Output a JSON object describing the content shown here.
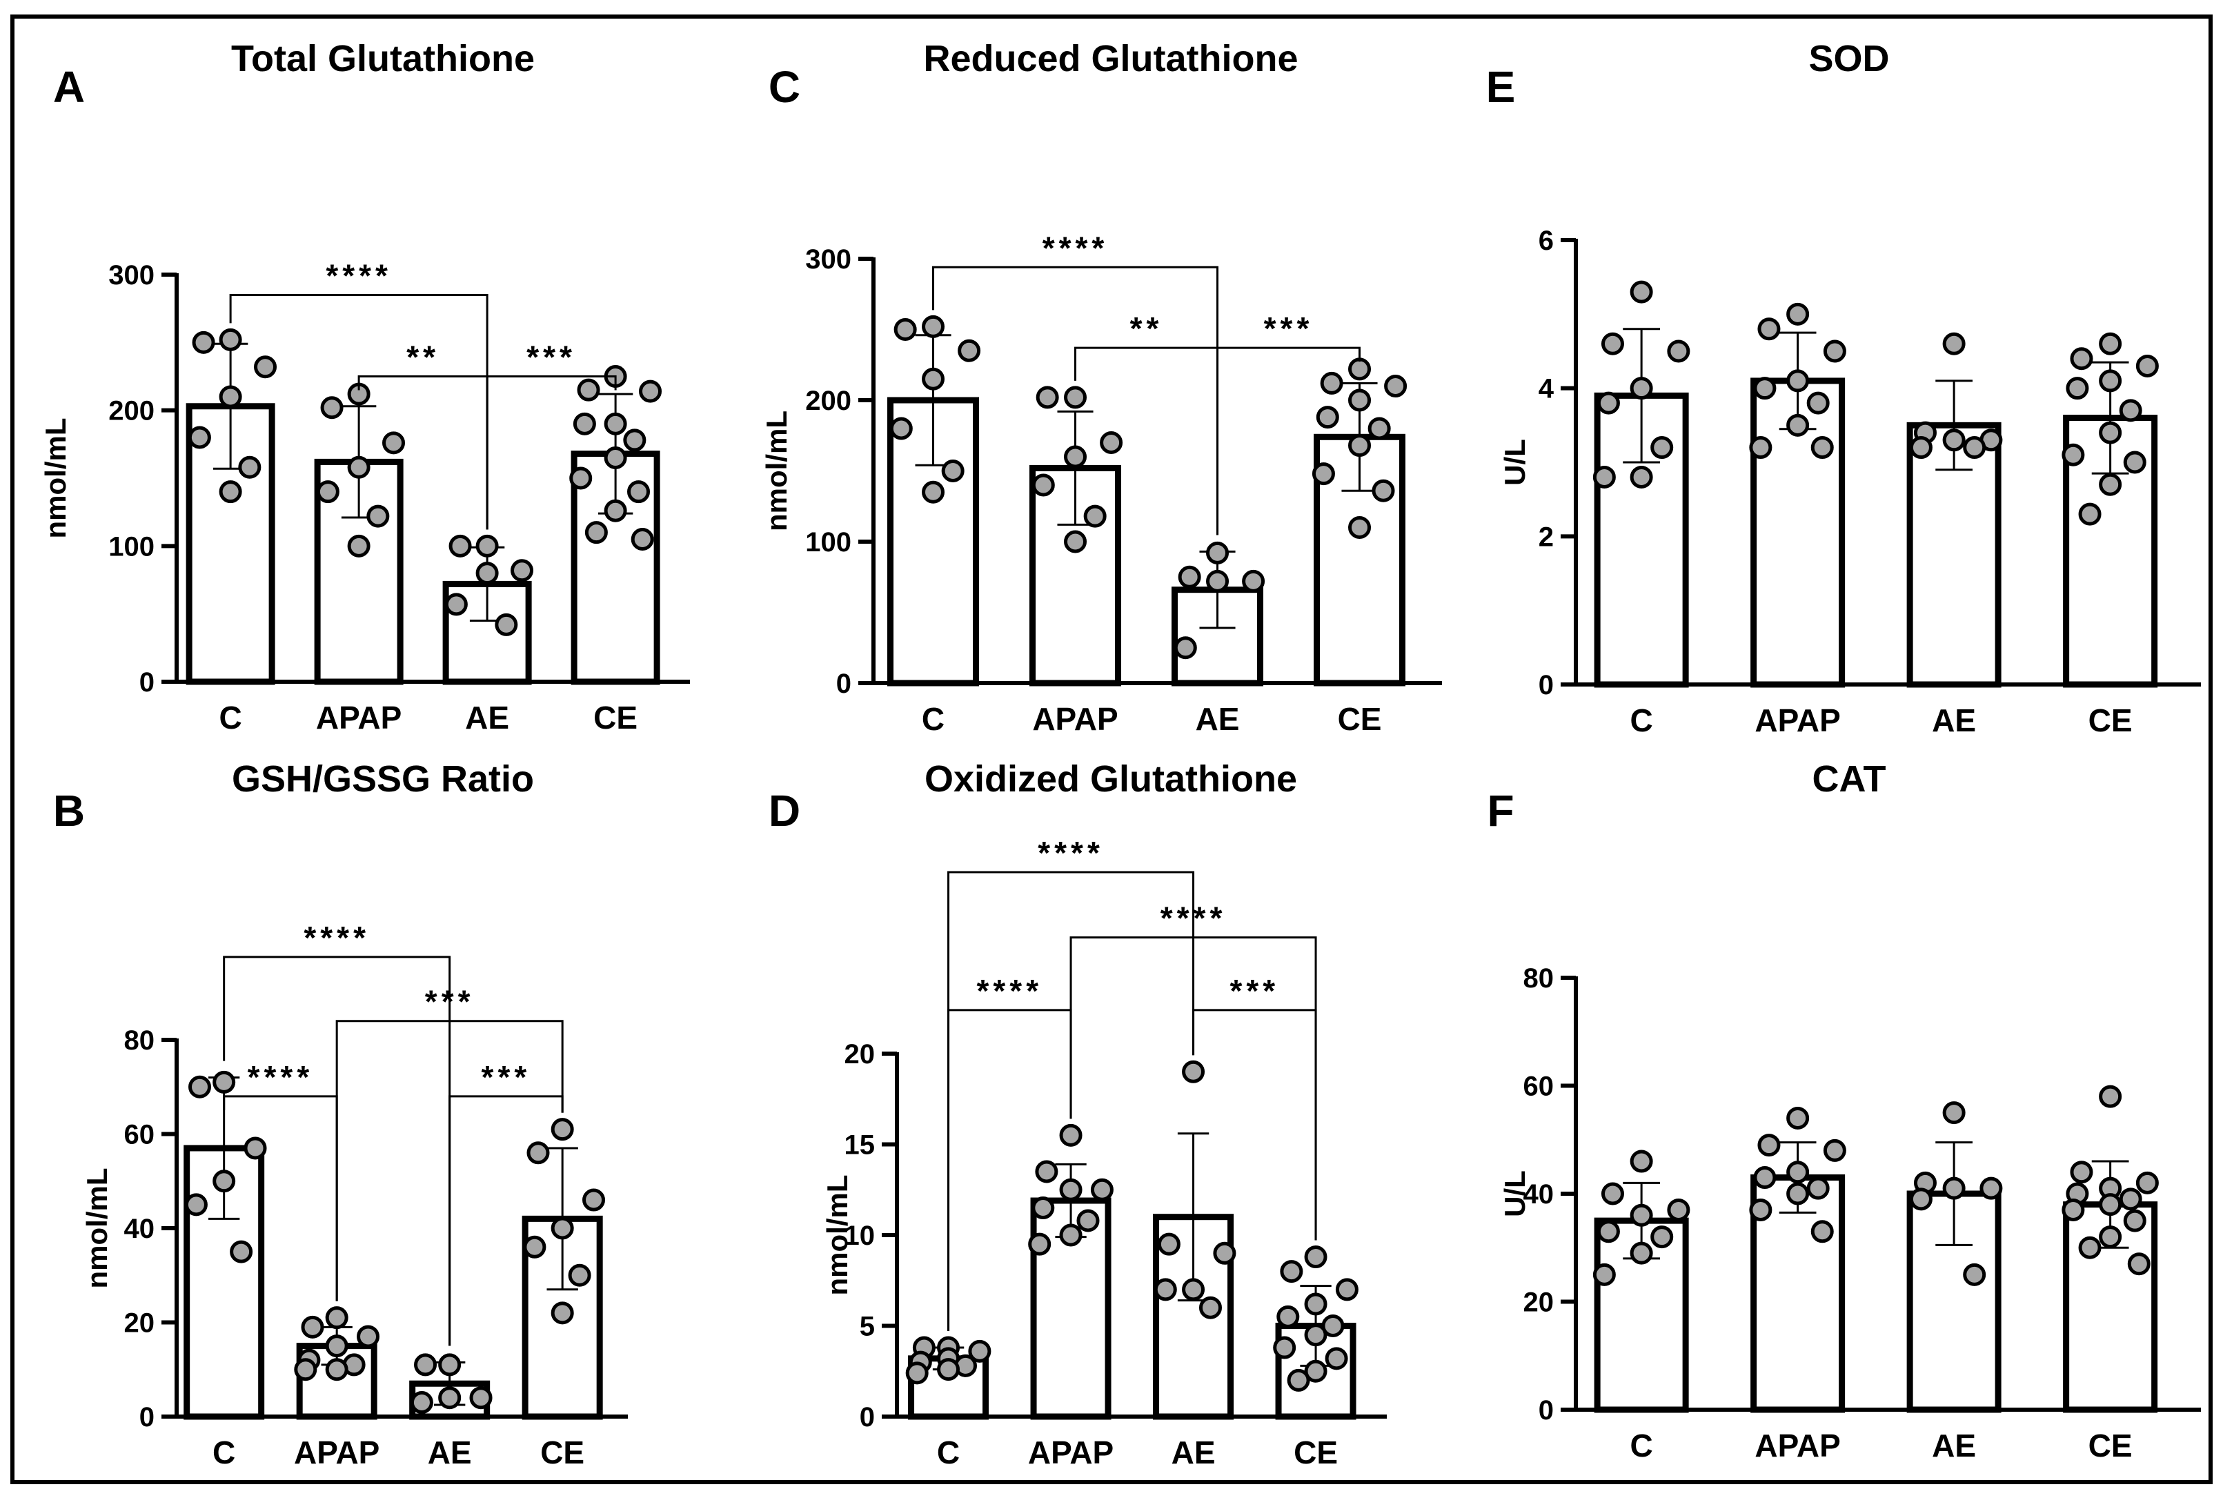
{
  "colors": {
    "frame": "#000000",
    "bar_fill": "#ffffff",
    "point_fill": "#a6a6a6",
    "ink": "#000000"
  },
  "chart_data": [
    {
      "panel": "A",
      "type": "bar",
      "title": "Total Glutathione",
      "ylabel": "nmol/mL",
      "ylim": [
        0,
        300
      ],
      "yticks": [
        0,
        100,
        200,
        300
      ],
      "ytick_labels": [
        "0",
        "100",
        "200",
        "300"
      ],
      "categories": [
        "C",
        "APAP",
        "AE",
        "CE"
      ],
      "values": [
        203,
        162,
        72,
        168
      ],
      "sd": [
        46,
        41,
        27,
        44
      ],
      "points": [
        [
          252,
          250,
          232,
          210,
          180,
          158,
          140
        ],
        [
          212,
          202,
          176,
          158,
          140,
          122,
          100
        ],
        [
          100,
          100,
          82,
          80,
          57,
          42
        ],
        [
          225,
          215,
          214,
          190,
          190,
          178,
          165,
          150,
          140,
          126,
          110,
          105
        ]
      ],
      "significance": [
        {
          "from": 0,
          "to": 2,
          "label": "****",
          "level": 0.95
        },
        {
          "from": 1,
          "to": 2,
          "label": "**",
          "level": 0.75
        },
        {
          "from": 2,
          "to": 3,
          "label": "***",
          "level": 0.75
        }
      ]
    },
    {
      "panel": "B",
      "type": "bar",
      "title": "GSH/GSSG Ratio",
      "ylabel": "nmol/mL",
      "ylim": [
        0,
        80
      ],
      "yticks": [
        0,
        20,
        40,
        60,
        80
      ],
      "ytick_labels": [
        "0",
        "20",
        "40",
        "60",
        "80"
      ],
      "categories": [
        "C",
        "APAP",
        "AE",
        "CE"
      ],
      "values": [
        57,
        15,
        7,
        42
      ],
      "sd": [
        15,
        4,
        4.5,
        15
      ],
      "points": [
        [
          71,
          70,
          57,
          50,
          45,
          35
        ],
        [
          21,
          19,
          17,
          15,
          12,
          11,
          10,
          10
        ],
        [
          11,
          11,
          4,
          4,
          3
        ],
        [
          61,
          56,
          46,
          40,
          36,
          30,
          22
        ]
      ],
      "significance": [
        {
          "from": 0,
          "to": 2,
          "label": "****",
          "level": 1.22
        },
        {
          "from": 1,
          "to": 3,
          "label": "***",
          "level": 1.05
        },
        {
          "from": 0,
          "to": 1,
          "label": "****",
          "level": 0.85
        },
        {
          "from": 2,
          "to": 3,
          "label": "***",
          "level": 0.85
        }
      ]
    },
    {
      "panel": "C",
      "type": "bar",
      "title": "Reduced Glutathione",
      "ylabel": "nmol/mL",
      "ylim": [
        0,
        300
      ],
      "yticks": [
        0,
        100,
        200,
        300
      ],
      "ytick_labels": [
        "0",
        "100",
        "200",
        "300"
      ],
      "categories": [
        "C",
        "APAP",
        "AE",
        "CE"
      ],
      "values": [
        200,
        152,
        66,
        174
      ],
      "sd": [
        46,
        40,
        27,
        38
      ],
      "points": [
        [
          252,
          250,
          235,
          215,
          180,
          150,
          135
        ],
        [
          202,
          202,
          170,
          160,
          140,
          118,
          100
        ],
        [
          92,
          75,
          72,
          72,
          25
        ],
        [
          222,
          212,
          210,
          200,
          188,
          180,
          168,
          148,
          136,
          110
        ]
      ],
      "significance": [
        {
          "from": 0,
          "to": 2,
          "label": "****",
          "level": 0.98
        },
        {
          "from": 1,
          "to": 2,
          "label": "**",
          "level": 0.79
        },
        {
          "from": 2,
          "to": 3,
          "label": "***",
          "level": 0.79
        }
      ]
    },
    {
      "panel": "D",
      "type": "bar",
      "title": "Oxidized Glutathione",
      "ylabel": "nmol/mL",
      "ylim": [
        0,
        20
      ],
      "yticks": [
        0,
        5,
        10,
        15,
        20
      ],
      "ytick_labels": [
        "0",
        "5",
        "10",
        "15",
        "20"
      ],
      "categories": [
        "C",
        "APAP",
        "AE",
        "CE"
      ],
      "values": [
        3.2,
        11.9,
        11,
        5
      ],
      "sd": [
        0.6,
        2,
        4.6,
        2.2
      ],
      "points": [
        [
          3.8,
          3.8,
          3.6,
          3.2,
          3.0,
          2.8,
          2.6,
          2.4
        ],
        [
          15.5,
          13.5,
          12.5,
          12.5,
          11.5,
          10.8,
          10,
          9.5
        ],
        [
          19,
          9.5,
          9,
          7,
          7,
          6
        ],
        [
          8.8,
          8,
          7,
          6.2,
          5.5,
          5,
          4.5,
          3.8,
          3.2,
          2.5,
          2
        ]
      ],
      "significance": [
        {
          "from": 0,
          "to": 2,
          "label": "****",
          "level": 1.5
        },
        {
          "from": 1,
          "to": 3,
          "label": "****",
          "level": 1.32
        },
        {
          "from": 0,
          "to": 1,
          "label": "****",
          "level": 1.12
        },
        {
          "from": 2,
          "to": 3,
          "label": "***",
          "level": 1.12
        }
      ]
    },
    {
      "panel": "E",
      "type": "bar",
      "title": "SOD",
      "ylabel": "U/L",
      "ylim": [
        0,
        6
      ],
      "yticks": [
        0,
        2,
        4,
        6
      ],
      "ytick_labels": [
        "0",
        "2",
        "4",
        "6"
      ],
      "categories": [
        "C",
        "APAP",
        "AE",
        "CE"
      ],
      "values": [
        3.9,
        4.1,
        3.5,
        3.6
      ],
      "sd": [
        0.9,
        0.65,
        0.6,
        0.75
      ],
      "points": [
        [
          5.3,
          4.6,
          4.5,
          4.0,
          3.8,
          3.2,
          2.8,
          2.8
        ],
        [
          5.0,
          4.8,
          4.5,
          4.1,
          4.0,
          3.8,
          3.5,
          3.2,
          3.2
        ],
        [
          4.6,
          3.4,
          3.3,
          3.3,
          3.2,
          3.2
        ],
        [
          4.6,
          4.4,
          4.3,
          4.1,
          4.0,
          3.7,
          3.4,
          3.1,
          3.0,
          2.7,
          2.3
        ]
      ],
      "significance": []
    },
    {
      "panel": "F",
      "type": "bar",
      "title": "CAT",
      "ylabel": "U/L",
      "ylim": [
        0,
        80
      ],
      "yticks": [
        0,
        20,
        40,
        60,
        80
      ],
      "ytick_labels": [
        "0",
        "20",
        "40",
        "60",
        "80"
      ],
      "categories": [
        "C",
        "APAP",
        "AE",
        "CE"
      ],
      "values": [
        35,
        43,
        40,
        38
      ],
      "sd": [
        7,
        6.5,
        9.5,
        8
      ],
      "points": [
        [
          46,
          40,
          37,
          36,
          33,
          32,
          29,
          25
        ],
        [
          54,
          49,
          48,
          44,
          43,
          41,
          40,
          37,
          33
        ],
        [
          55,
          42,
          41,
          41,
          39,
          25
        ],
        [
          58,
          44,
          42,
          41,
          40,
          39,
          38,
          37,
          35,
          32,
          30,
          27
        ]
      ],
      "significance": []
    }
  ]
}
